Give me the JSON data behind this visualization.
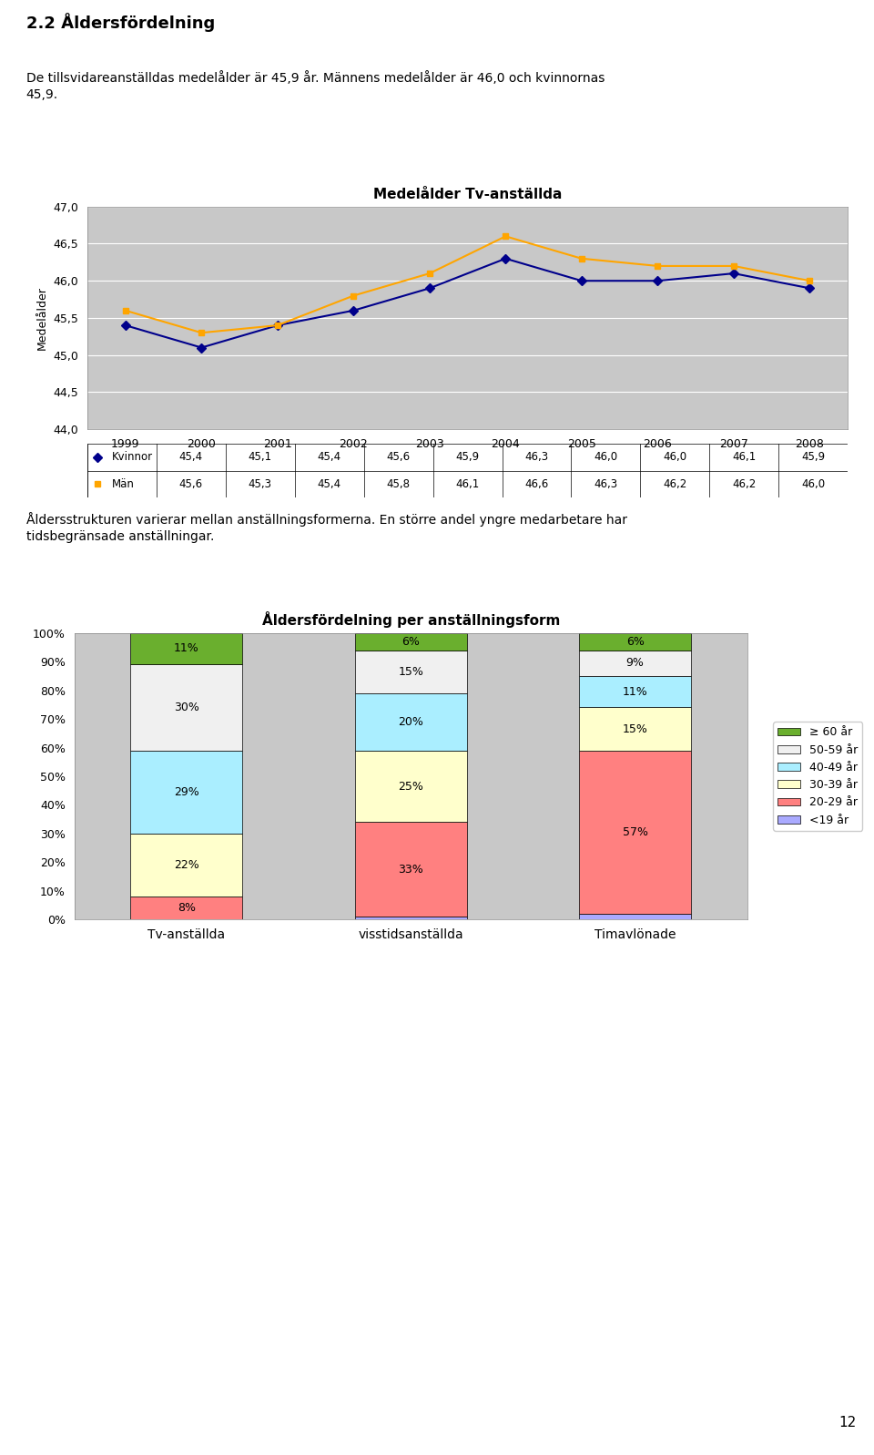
{
  "page_title": "2.2 Åldersfördelning",
  "page_text1": "De tillsvidareanställdas medelålder är 45,9 år. Männens medelålder är 46,0 och kvinnornas\n45,9.",
  "page_text2": "Åldersstrukturen varierar mellan anställningsformerna. En större andel yngre medarbetare har\ntidsbegränsade anställningar.",
  "page_number": "12",
  "line_chart": {
    "title": "Medelålder Tv-anställda",
    "ylabel": "Medelålder",
    "years": [
      1999,
      2000,
      2001,
      2002,
      2003,
      2004,
      2005,
      2006,
      2007,
      2008
    ],
    "kvinnor": [
      45.4,
      45.1,
      45.4,
      45.6,
      45.9,
      46.3,
      46.0,
      46.0,
      46.1,
      45.9
    ],
    "man": [
      45.6,
      45.3,
      45.4,
      45.8,
      46.1,
      46.6,
      46.3,
      46.2,
      46.2,
      46.0
    ],
    "ylim": [
      44.0,
      47.0
    ],
    "yticks": [
      44.0,
      44.5,
      45.0,
      45.5,
      46.0,
      46.5,
      47.0
    ],
    "kvinnor_color": "#00008B",
    "man_color": "#FFA500",
    "bg_color": "#BEBEBE",
    "plot_bg": "#C8C8C8",
    "legend_kvinnor": "Kvinnor",
    "legend_man": "Män",
    "table_rows": {
      "Kvinnor": [
        "45,4",
        "45,1",
        "45,4",
        "45,6",
        "45,9",
        "46,3",
        "46,0",
        "46,0",
        "46,1",
        "45,9"
      ],
      "Män": [
        "45,6",
        "45,3",
        "45,4",
        "45,8",
        "46,1",
        "46,6",
        "46,3",
        "46,2",
        "46,2",
        "46,0"
      ]
    }
  },
  "bar_chart": {
    "title": "Åldersfördelning per anställningsform",
    "categories": [
      "Tv-anställda",
      "visstidsanställda",
      "Timavlönade"
    ],
    "segments": {
      "ge60": [
        11,
        6,
        6
      ],
      "50_59": [
        30,
        15,
        9
      ],
      "40_49": [
        29,
        20,
        11
      ],
      "30_39": [
        22,
        25,
        15
      ],
      "20_29": [
        8,
        33,
        57
      ],
      "lt19": [
        0,
        1,
        2
      ]
    },
    "labels": {
      "ge60": [
        "11%",
        "6%",
        "6%"
      ],
      "50_59": [
        "30%",
        "15%",
        "9%"
      ],
      "40_49": [
        "29%",
        "20%",
        "11%"
      ],
      "30_39": [
        "22%",
        "25%",
        "15%"
      ],
      "20_29": [
        "8%",
        "33%",
        "57%"
      ],
      "lt19": [
        "",
        "",
        ""
      ]
    },
    "colors": {
      "ge60": "#6AAF2E",
      "50_59": "#F0F0F0",
      "40_49": "#AAEEFF",
      "30_39": "#FFFFCC",
      "20_29": "#FF8080",
      "lt19": "#AAAAFF"
    },
    "legend_labels": [
      "≥ 60 år",
      "50-59 år",
      "40-49 år",
      "30-39 år",
      "20-29 år",
      "<19 år"
    ],
    "bg_color": "#BEBEBE",
    "plot_bg": "#C8C8C8"
  }
}
